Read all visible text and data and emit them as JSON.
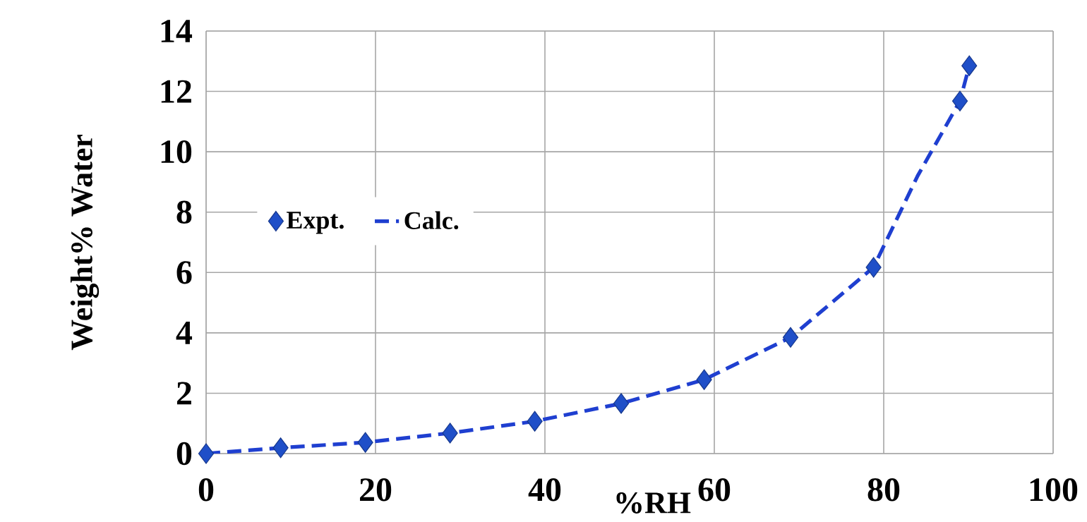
{
  "chart_data": {
    "type": "scatter",
    "xlabel": "%RH",
    "ylabel": "Weight% Water",
    "xlim": [
      0,
      100
    ],
    "ylim": [
      0,
      14
    ],
    "xticks": [
      0,
      20,
      40,
      60,
      80,
      100
    ],
    "yticks": [
      0,
      2,
      4,
      6,
      8,
      10,
      12,
      14
    ],
    "grid": true,
    "legend": "left",
    "series": [
      {
        "name": "Expt.",
        "marker": "diamond",
        "color": "#1f4fc8",
        "x": [
          0,
          8.8,
          18.8,
          28.8,
          38.8,
          49,
          58.8,
          69,
          78.8,
          89,
          90.1
        ],
        "values": [
          0,
          0.19,
          0.37,
          0.68,
          1.07,
          1.66,
          2.45,
          3.85,
          6.17,
          11.68,
          12.85
        ]
      },
      {
        "name": "Calc.",
        "type": "line",
        "line_style": "dashed",
        "color": "#1f3fd0",
        "x": [
          0,
          8.8,
          18.8,
          28.8,
          38.8,
          49,
          58.8,
          69,
          78.8,
          84,
          89,
          90.1
        ],
        "values": [
          0,
          0.19,
          0.37,
          0.68,
          1.07,
          1.66,
          2.45,
          3.85,
          6.17,
          9.2,
          11.68,
          12.85
        ]
      }
    ]
  }
}
